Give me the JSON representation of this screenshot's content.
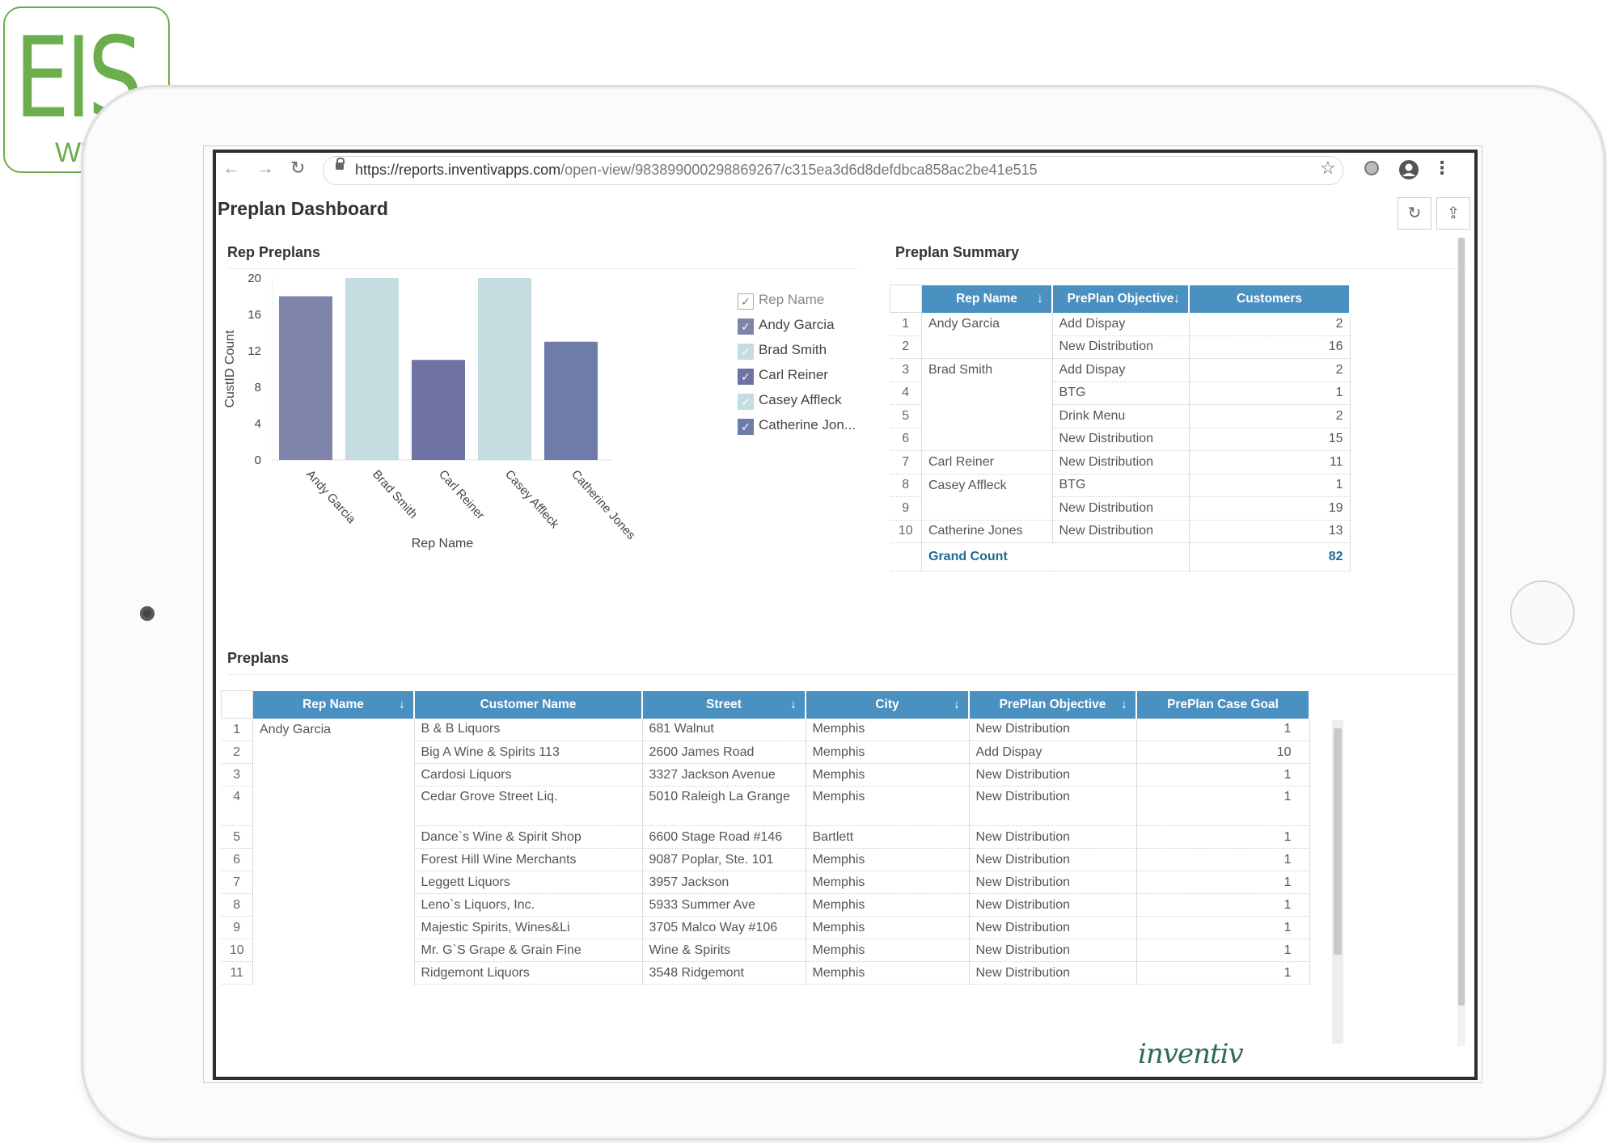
{
  "logo": {
    "main": "EIS",
    "sub": "WEB"
  },
  "browser": {
    "url_host": "https://reports.inventivapps.com",
    "url_path": "/open-view/983899000298869267/c315ea3d6d8defdbca858ac2be41e515"
  },
  "page": {
    "title": "Preplan Dashboard"
  },
  "rep_preplans": {
    "title": "Rep Preplans",
    "legend_title": "Rep Name",
    "legend": [
      {
        "label": "Andy Garcia",
        "checked": true,
        "color": "#7f84ab"
      },
      {
        "label": "Brad Smith",
        "checked": true,
        "color": "#c5dde1"
      },
      {
        "label": "Carl Reiner",
        "checked": true,
        "color": "#6f73a3"
      },
      {
        "label": "Casey Affleck",
        "checked": true,
        "color": "#c5dde1"
      },
      {
        "label": "Catherine Jon...",
        "checked": true,
        "color": "#6f7ba9"
      }
    ]
  },
  "chart_data": {
    "type": "bar",
    "categories": [
      "Andy Garcia",
      "Brad Smith",
      "Carl Reiner",
      "Casey Affleck",
      "Catherine Jones"
    ],
    "values": [
      18,
      20,
      11,
      20,
      13
    ],
    "colors": [
      "#7f84ab",
      "#c5dde1",
      "#6f73a3",
      "#c5dde1",
      "#6f7ba9"
    ],
    "xlabel": "Rep Name",
    "ylabel": "CustID Count",
    "ylim": [
      0,
      20
    ],
    "yticks": [
      0,
      4,
      8,
      12,
      16,
      20
    ],
    "legend": "right"
  },
  "preplan_summary": {
    "title": "Preplan Summary",
    "headers": [
      "Rep Name",
      "PrePlan Objective",
      "Customers"
    ],
    "rows": [
      {
        "idx": "1",
        "rep": "Andy Garcia",
        "obj": "Add Dispay",
        "cust": "2"
      },
      {
        "idx": "2",
        "rep": "",
        "obj": "New Distribution",
        "cust": "16"
      },
      {
        "idx": "3",
        "rep": "Brad Smith",
        "obj": "Add Dispay",
        "cust": "2"
      },
      {
        "idx": "4",
        "rep": "",
        "obj": "BTG",
        "cust": "1"
      },
      {
        "idx": "5",
        "rep": "",
        "obj": "Drink Menu",
        "cust": "2"
      },
      {
        "idx": "6",
        "rep": "",
        "obj": "New Distribution",
        "cust": "15"
      },
      {
        "idx": "7",
        "rep": "Carl Reiner",
        "obj": "New Distribution",
        "cust": "11"
      },
      {
        "idx": "8",
        "rep": "Casey Affleck",
        "obj": "BTG",
        "cust": "1"
      },
      {
        "idx": "9",
        "rep": "",
        "obj": "New Distribution",
        "cust": "19"
      },
      {
        "idx": "10",
        "rep": "Catherine Jones",
        "obj": "New Distribution",
        "cust": "13"
      }
    ],
    "grand_label": "Grand Count",
    "grand_value": "82"
  },
  "preplans": {
    "title": "Preplans",
    "headers": [
      "Rep Name",
      "Customer Name",
      "Street",
      "City",
      "PrePlan Objective",
      "PrePlan Case Goal"
    ],
    "rows": [
      {
        "idx": "1",
        "rep": "Andy Garcia",
        "cust": "B & B Liquors",
        "street": "681 Walnut",
        "city": "Memphis",
        "obj": "New Distribution",
        "goal": "1"
      },
      {
        "idx": "2",
        "rep": "",
        "cust": "Big A Wine & Spirits 113",
        "street": "2600 James Road",
        "city": "Memphis",
        "obj": "Add Dispay",
        "goal": "10"
      },
      {
        "idx": "3",
        "rep": "",
        "cust": "Cardosi Liquors",
        "street": "3327 Jackson Avenue",
        "city": "Memphis",
        "obj": "New Distribution",
        "goal": "1"
      },
      {
        "idx": "4",
        "rep": "",
        "cust": "Cedar Grove Street Liq.",
        "street": "5010 Raleigh La Grange",
        "city": "Memphis",
        "obj": "New Distribution",
        "goal": "1"
      },
      {
        "idx": "5",
        "rep": "",
        "cust": "Dance`s Wine & Spirit Shop",
        "street": "6600 Stage Road #146",
        "city": "Bartlett",
        "obj": "New Distribution",
        "goal": "1"
      },
      {
        "idx": "6",
        "rep": "",
        "cust": "Forest Hill Wine Merchants",
        "street": "9087 Poplar, Ste. 101",
        "city": "Memphis",
        "obj": "New Distribution",
        "goal": "1"
      },
      {
        "idx": "7",
        "rep": "",
        "cust": "Leggett Liquors",
        "street": "3957 Jackson",
        "city": "Memphis",
        "obj": "New Distribution",
        "goal": "1"
      },
      {
        "idx": "8",
        "rep": "",
        "cust": "Leno`s Liquors, Inc.",
        "street": "5933 Summer Ave",
        "city": "Memphis",
        "obj": "New Distribution",
        "goal": "1"
      },
      {
        "idx": "9",
        "rep": "",
        "cust": "Majestic Spirits, Wines&Li",
        "street": "3705 Malco Way #106",
        "city": "Memphis",
        "obj": "New Distribution",
        "goal": "1"
      },
      {
        "idx": "10",
        "rep": "",
        "cust": "Mr. G`S Grape & Grain Fine",
        "street": "Wine & Spirits",
        "city": "Memphis",
        "obj": "New Distribution",
        "goal": "1"
      },
      {
        "idx": "11",
        "rep": "",
        "cust": "Ridgemont Liquors",
        "street": "3548 Ridgemont",
        "city": "Memphis",
        "obj": "New Distribution",
        "goal": "1"
      }
    ]
  },
  "brand": {
    "text": "inventiv"
  }
}
